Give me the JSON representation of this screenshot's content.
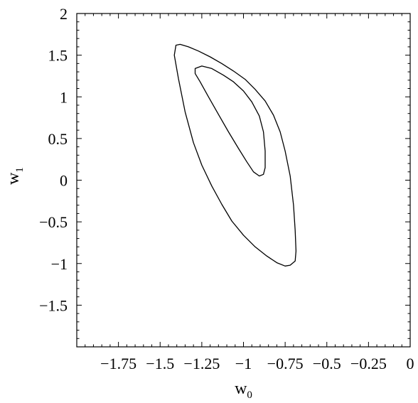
{
  "chart_data": {
    "type": "line",
    "title": "",
    "xlabel": {
      "base": "w",
      "sub": "0"
    },
    "ylabel": {
      "base": "w",
      "sub": "1"
    },
    "xlim": [
      -2,
      0
    ],
    "ylim": [
      -2,
      2
    ],
    "grid": false,
    "x_ticks": [
      {
        "value": -1.75,
        "label": "−1.75"
      },
      {
        "value": -1.5,
        "label": "−1.5"
      },
      {
        "value": -1.25,
        "label": "−1.25"
      },
      {
        "value": -1.0,
        "label": "−1"
      },
      {
        "value": -0.75,
        "label": "−0.75"
      },
      {
        "value": -0.5,
        "label": "−0.5"
      },
      {
        "value": -0.25,
        "label": "−0.25"
      },
      {
        "value": 0,
        "label": "0"
      }
    ],
    "y_ticks": [
      {
        "value": 2,
        "label": "2"
      },
      {
        "value": 1.5,
        "label": "1.5"
      },
      {
        "value": 1,
        "label": "1"
      },
      {
        "value": 0.5,
        "label": "0.5"
      },
      {
        "value": 0,
        "label": "0"
      },
      {
        "value": -0.5,
        "label": "−0.5"
      },
      {
        "value": -1,
        "label": "−1"
      },
      {
        "value": -1.5,
        "label": "−1.5"
      }
    ],
    "series": [
      {
        "points": [
          [
            -1.405,
            1.62
          ],
          [
            -1.38,
            1.63
          ],
          [
            -1.33,
            1.6
          ],
          [
            -1.27,
            1.55
          ],
          [
            -1.2,
            1.48
          ],
          [
            -1.13,
            1.4
          ],
          [
            -1.06,
            1.31
          ],
          [
            -0.99,
            1.21
          ],
          [
            -0.93,
            1.09
          ],
          [
            -0.87,
            0.95
          ],
          [
            -0.82,
            0.78
          ],
          [
            -0.78,
            0.58
          ],
          [
            -0.75,
            0.35
          ],
          [
            -0.72,
            0.05
          ],
          [
            -0.7,
            -0.3
          ],
          [
            -0.69,
            -0.6
          ],
          [
            -0.685,
            -0.85
          ],
          [
            -0.69,
            -0.97
          ],
          [
            -0.72,
            -1.02
          ],
          [
            -0.75,
            -1.03
          ],
          [
            -0.8,
            -0.99
          ],
          [
            -0.86,
            -0.91
          ],
          [
            -0.93,
            -0.8
          ],
          [
            -1.0,
            -0.66
          ],
          [
            -1.07,
            -0.49
          ],
          [
            -1.13,
            -0.29
          ],
          [
            -1.19,
            -0.07
          ],
          [
            -1.25,
            0.18
          ],
          [
            -1.3,
            0.45
          ],
          [
            -1.35,
            0.82
          ],
          [
            -1.39,
            1.22
          ],
          [
            -1.415,
            1.5
          ],
          [
            -1.405,
            1.62
          ]
        ]
      },
      {
        "points": [
          [
            -1.29,
            1.34
          ],
          [
            -1.25,
            1.37
          ],
          [
            -1.19,
            1.34
          ],
          [
            -1.12,
            1.26
          ],
          [
            -1.06,
            1.18
          ],
          [
            -1.0,
            1.07
          ],
          [
            -0.95,
            0.94
          ],
          [
            -0.905,
            0.77
          ],
          [
            -0.88,
            0.58
          ],
          [
            -0.87,
            0.35
          ],
          [
            -0.87,
            0.15
          ],
          [
            -0.88,
            0.07
          ],
          [
            -0.905,
            0.05
          ],
          [
            -0.94,
            0.1
          ],
          [
            -0.98,
            0.22
          ],
          [
            -1.03,
            0.38
          ],
          [
            -1.09,
            0.58
          ],
          [
            -1.15,
            0.79
          ],
          [
            -1.21,
            1.0
          ],
          [
            -1.26,
            1.18
          ],
          [
            -1.29,
            1.28
          ],
          [
            -1.29,
            1.34
          ]
        ]
      }
    ]
  }
}
